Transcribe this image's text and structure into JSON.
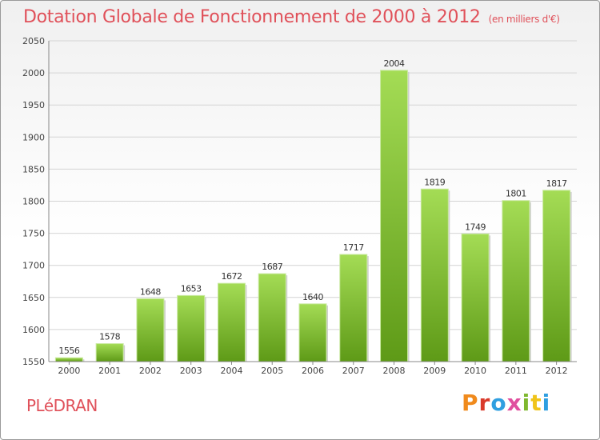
{
  "header": {
    "title": "Dotation Globale de Fonctionnement de 2000 à 2012",
    "subtitle": "(en milliers d'€)"
  },
  "footer": {
    "city": "PLéDRAN",
    "brand": "Proxiti",
    "brand_colors": [
      "#f08a1c",
      "#d93a2b",
      "#2f9fe0",
      "#e04f9f",
      "#7fb82f",
      "#f0c419",
      "#2f9fe0"
    ]
  },
  "chart_data": {
    "type": "bar",
    "title": "Dotation Globale de Fonctionnement de 2000 à 2012",
    "subtitle": "(en milliers d'€)",
    "xlabel": "",
    "ylabel": "",
    "categories": [
      "2000",
      "2001",
      "2002",
      "2003",
      "2004",
      "2005",
      "2006",
      "2007",
      "2008",
      "2009",
      "2010",
      "2011",
      "2012"
    ],
    "values": [
      1556,
      1578,
      1648,
      1653,
      1672,
      1687,
      1640,
      1717,
      2004,
      1819,
      1749,
      1801,
      1817
    ],
    "ylim": [
      1550,
      2050
    ],
    "yticks": [
      1550,
      1600,
      1650,
      1700,
      1750,
      1800,
      1850,
      1900,
      1950,
      2000,
      2050
    ],
    "grid": true,
    "data_labels": true,
    "bar_color": "#7cbf2a",
    "bar_color_light": "#a4dc55",
    "bar_color_dark": "#5e9a17"
  }
}
